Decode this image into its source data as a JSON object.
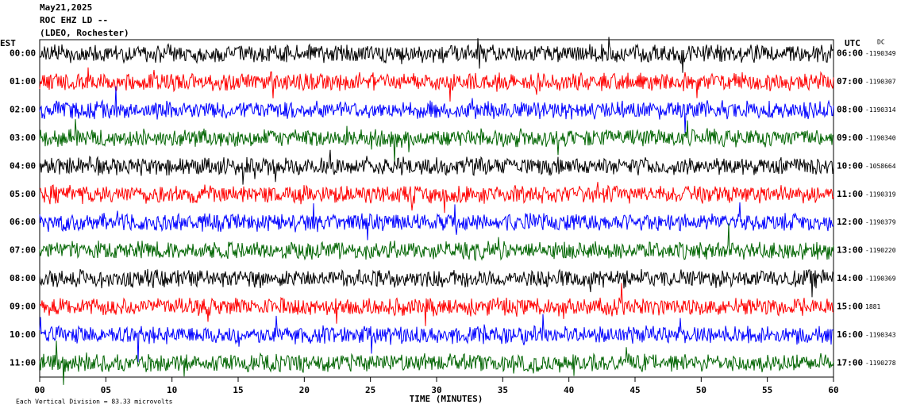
{
  "chart_data": {
    "type": "helicorder",
    "header": [
      "May21,2025",
      "ROC EHZ LD --",
      "(LDEO, Rochester)"
    ],
    "left_axis_title": "EST",
    "right_axis_title": "UTC",
    "dc_title": "DC",
    "rows_left": [
      "00:00",
      "01:00",
      "02:00",
      "03:00",
      "04:00",
      "05:00",
      "06:00",
      "07:00",
      "08:00",
      "09:00",
      "10:00",
      "11:00"
    ],
    "rows_right": [
      "06:00",
      "07:00",
      "08:00",
      "09:00",
      "10:00",
      "11:00",
      "12:00",
      "13:00",
      "14:00",
      "15:00",
      "16:00",
      "17:00"
    ],
    "dc_offsets": [
      "-1190349",
      "-1190307",
      "-1190314",
      "-1190340",
      "-1058664",
      "-1190319",
      "-1190379",
      "-1190220",
      "-1190369",
      "1881",
      "-1190343",
      "-1190278"
    ],
    "trace_colors": [
      "#000000",
      "#ff0000",
      "#0000ff",
      "#006400"
    ],
    "x_label": "TIME (MINUTES)",
    "xlim": [
      0,
      60
    ],
    "xticks": [
      {
        "value": 0,
        "label": "00"
      },
      {
        "value": 5,
        "label": "05"
      },
      10,
      15,
      20,
      25,
      30,
      35,
      40,
      45,
      50,
      55,
      60
    ],
    "footer": "Each Vertical Division = 83.33 microvolts"
  }
}
